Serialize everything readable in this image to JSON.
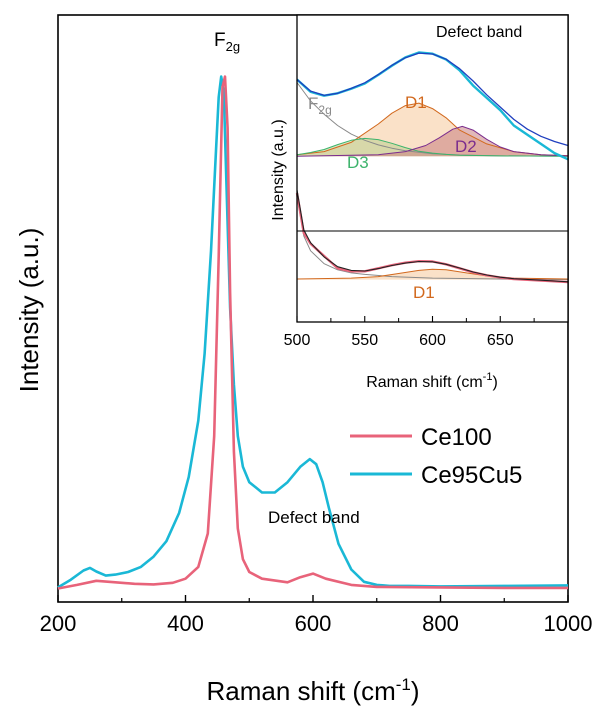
{
  "chart_data": [
    {
      "type": "line",
      "xlabel": "Raman shift (cm",
      "xlabel_sup": "-1",
      "xlabel_end": ")",
      "ylabel": "Intensity (a.u.)",
      "xlim": [
        200,
        1000
      ],
      "ylim": [
        0,
        1.12
      ],
      "xticks": [
        200,
        400,
        600,
        800,
        1000
      ],
      "yticks_shown": false,
      "legend": {
        "placement": "center-right",
        "entries": [
          {
            "name": "Ce100",
            "color": "#e8637a"
          },
          {
            "name": "Ce95Cu5",
            "color": "#1ab8d6"
          }
        ]
      },
      "annotations": [
        {
          "text": "F",
          "sub": "2g",
          "x": 458,
          "y": 1.045
        },
        {
          "text": "Defect band",
          "x": 600,
          "y": 0.16
        }
      ],
      "series": [
        {
          "name": "Ce100",
          "color": "#e8637a",
          "x": [
            200,
            230,
            260,
            290,
            320,
            350,
            380,
            400,
            420,
            435,
            445,
            452,
            458,
            462,
            466,
            470,
            476,
            482,
            490,
            500,
            520,
            560,
            580,
            600,
            620,
            660,
            700,
            800,
            900,
            1000
          ],
          "y": [
            0.003,
            0.01,
            0.018,
            0.015,
            0.012,
            0.011,
            0.014,
            0.022,
            0.045,
            0.11,
            0.3,
            0.65,
            0.98,
            1.0,
            0.9,
            0.58,
            0.27,
            0.12,
            0.06,
            0.035,
            0.022,
            0.015,
            0.025,
            0.032,
            0.022,
            0.01,
            0.006,
            0.005,
            0.004,
            0.004
          ]
        },
        {
          "name": "Ce95Cu5",
          "color": "#1ab8d6",
          "x": [
            200,
            220,
            240,
            250,
            260,
            275,
            290,
            310,
            330,
            350,
            370,
            390,
            405,
            420,
            430,
            440,
            448,
            452,
            456,
            460,
            464,
            470,
            476,
            482,
            490,
            500,
            510,
            520,
            540,
            560,
            580,
            595,
            605,
            615,
            625,
            640,
            660,
            680,
            700,
            720,
            750,
            800,
            900,
            1000
          ],
          "y": [
            0.005,
            0.02,
            0.038,
            0.043,
            0.036,
            0.028,
            0.03,
            0.035,
            0.045,
            0.065,
            0.095,
            0.15,
            0.22,
            0.33,
            0.46,
            0.66,
            0.86,
            0.96,
            1.0,
            0.97,
            0.8,
            0.55,
            0.4,
            0.3,
            0.24,
            0.21,
            0.2,
            0.19,
            0.19,
            0.21,
            0.24,
            0.255,
            0.245,
            0.21,
            0.16,
            0.09,
            0.04,
            0.016,
            0.01,
            0.008,
            0.008,
            0.007,
            0.008,
            0.009
          ]
        }
      ]
    },
    {
      "type": "line",
      "subplot": "inset",
      "title": "Defect band",
      "xlabel": "Raman shift (cm",
      "xlabel_sup": "-1",
      "xlabel_end": ")",
      "ylabel": "Intensity (a.u.)",
      "xlim": [
        500,
        700
      ],
      "ylim": [
        0,
        1
      ],
      "xticks": [
        500,
        550,
        600,
        650
      ],
      "annotations": [
        {
          "text": "F",
          "sub": "2g",
          "x": 516,
          "y": 0.74,
          "color": "#8a8a8a"
        },
        {
          "text": "D1",
          "x": 590,
          "y": 0.715,
          "color": "#d2691e"
        },
        {
          "text": "D2",
          "x": 633,
          "y": 0.615,
          "color": "#7b2d8e"
        },
        {
          "text": "D3",
          "x": 549,
          "y": 0.54,
          "color": "#3cb36b"
        },
        {
          "text": "D1",
          "x": 598,
          "y": 0.2,
          "color": "#d2691e"
        }
      ],
      "upper": {
        "Ce95Cu5_measured": {
          "color": "#1ab8d6",
          "x": [
            500,
            510,
            520,
            530,
            540,
            550,
            560,
            570,
            580,
            590,
            600,
            610,
            620,
            630,
            640,
            650,
            660,
            670,
            680,
            690,
            700
          ],
          "y": [
            0.79,
            0.75,
            0.737,
            0.745,
            0.76,
            0.777,
            0.805,
            0.835,
            0.862,
            0.878,
            0.874,
            0.855,
            0.82,
            0.77,
            0.73,
            0.69,
            0.64,
            0.61,
            0.58,
            0.55,
            0.53
          ]
        },
        "Ce95Cu5_fit": {
          "color": "#1f3fbf",
          "x": [
            500,
            510,
            520,
            530,
            540,
            550,
            560,
            570,
            580,
            590,
            600,
            610,
            620,
            630,
            640,
            650,
            660,
            670,
            680,
            690,
            700
          ],
          "y": [
            0.79,
            0.752,
            0.738,
            0.745,
            0.761,
            0.779,
            0.806,
            0.836,
            0.861,
            0.876,
            0.873,
            0.856,
            0.825,
            0.785,
            0.74,
            0.7,
            0.66,
            0.628,
            0.605,
            0.588,
            0.575
          ]
        },
        "F2g_component": {
          "color": "#8a8a8a",
          "x": [
            500,
            510,
            520,
            530,
            540,
            550,
            560,
            570,
            580,
            600,
            620,
            650,
            700
          ],
          "y": [
            0.78,
            0.72,
            0.677,
            0.64,
            0.612,
            0.592,
            0.577,
            0.566,
            0.558,
            0.548,
            0.544,
            0.541,
            0.54
          ]
        },
        "D1_component": {
          "color": "#d2691e",
          "fill": "#f5c89a",
          "x": [
            500,
            520,
            540,
            560,
            570,
            580,
            590,
            600,
            610,
            620,
            640,
            660,
            680,
            700
          ],
          "y": [
            0.545,
            0.555,
            0.585,
            0.645,
            0.68,
            0.705,
            0.713,
            0.695,
            0.665,
            0.625,
            0.58,
            0.555,
            0.545,
            0.542
          ]
        },
        "D2_component": {
          "color": "#7b2d8e",
          "fill": "#c98080",
          "x": [
            500,
            560,
            580,
            595,
            605,
            615,
            622,
            630,
            640,
            650,
            660,
            680,
            700
          ],
          "y": [
            0.54,
            0.545,
            0.555,
            0.575,
            0.6,
            0.628,
            0.637,
            0.625,
            0.595,
            0.57,
            0.555,
            0.545,
            0.541
          ]
        },
        "D3_component": {
          "color": "#3cb36b",
          "fill": "#b9d28f",
          "x": [
            500,
            510,
            520,
            530,
            540,
            550,
            560,
            570,
            580,
            590,
            600,
            610,
            620,
            650,
            700
          ],
          "y": [
            0.545,
            0.552,
            0.562,
            0.578,
            0.592,
            0.598,
            0.594,
            0.582,
            0.568,
            0.556,
            0.55,
            0.546,
            0.543,
            0.541,
            0.54
          ]
        }
      },
      "lower": {
        "Ce100_measured": {
          "color": "#e8637a",
          "x": [
            500,
            505,
            510,
            520,
            530,
            540,
            550,
            560,
            570,
            580,
            590,
            600,
            610,
            620,
            630,
            640,
            650,
            660,
            680,
            700
          ],
          "y": [
            0.42,
            0.29,
            0.255,
            0.215,
            0.175,
            0.165,
            0.165,
            0.175,
            0.185,
            0.193,
            0.198,
            0.197,
            0.188,
            0.175,
            0.162,
            0.152,
            0.145,
            0.14,
            0.135,
            0.13
          ]
        },
        "Ce100_fit": {
          "color": "#222222",
          "x": [
            500,
            505,
            510,
            520,
            530,
            540,
            550,
            560,
            570,
            580,
            590,
            600,
            610,
            620,
            630,
            640,
            650,
            660,
            680,
            700
          ],
          "y": [
            0.43,
            0.3,
            0.258,
            0.212,
            0.18,
            0.168,
            0.166,
            0.174,
            0.184,
            0.192,
            0.197,
            0.196,
            0.188,
            0.176,
            0.163,
            0.153,
            0.146,
            0.141,
            0.136,
            0.131
          ]
        },
        "F2g_component": {
          "color": "#8a8a8a",
          "x": [
            500,
            505,
            510,
            520,
            530,
            540,
            550,
            570,
            600,
            650,
            700
          ],
          "y": [
            0.41,
            0.28,
            0.232,
            0.19,
            0.17,
            0.16,
            0.155,
            0.148,
            0.143,
            0.14,
            0.138
          ]
        },
        "D1_component": {
          "color": "#d2691e",
          "fill": "#f5c89a",
          "x": [
            500,
            540,
            560,
            575,
            590,
            600,
            610,
            625,
            640,
            660,
            700
          ],
          "y": [
            0.14,
            0.143,
            0.148,
            0.158,
            0.168,
            0.172,
            0.17,
            0.16,
            0.15,
            0.143,
            0.14
          ]
        }
      }
    }
  ],
  "colors": {
    "ce100": "#e8637a",
    "ce95cu5": "#1ab8d6",
    "fit_blue": "#1f3fbf"
  }
}
